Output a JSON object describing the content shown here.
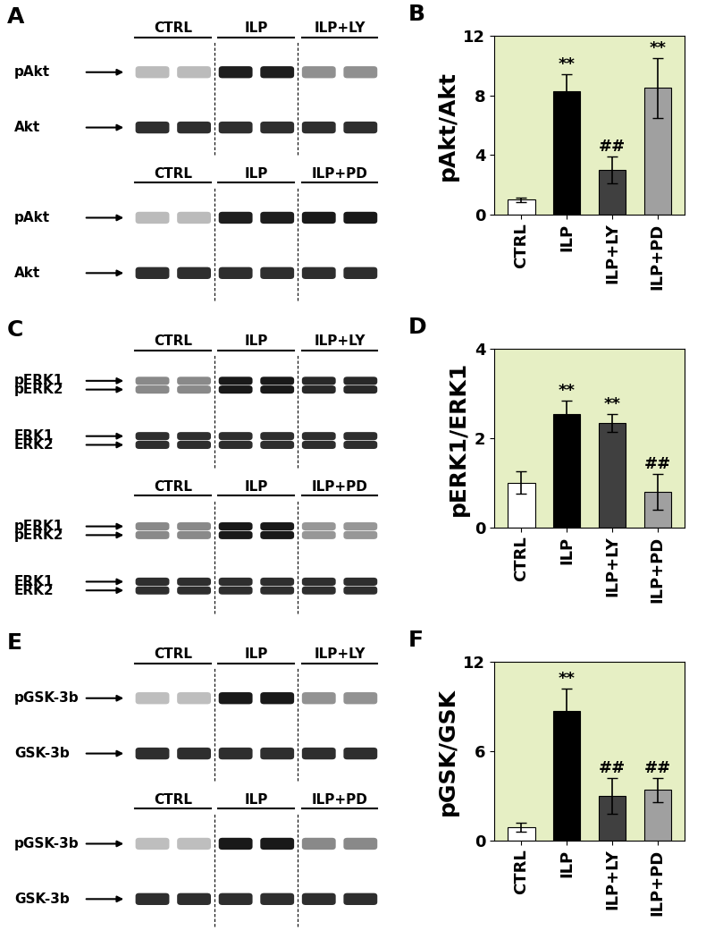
{
  "panel_letters": [
    "A",
    "B",
    "C",
    "D",
    "E",
    "F"
  ],
  "blots": [
    {
      "blocks": [
        {
          "groups": [
            "CTRL",
            "ILP",
            "ILP+LY"
          ],
          "rows": [
            [
              "pAkt"
            ],
            [
              "Akt"
            ]
          ]
        },
        {
          "groups": [
            "CTRL",
            "ILP",
            "ILP+PD"
          ],
          "rows": [
            [
              "pAkt"
            ],
            [
              "Akt"
            ]
          ]
        }
      ]
    },
    {
      "blocks": [
        {
          "groups": [
            "CTRL",
            "ILP",
            "ILP+LY"
          ],
          "rows": [
            [
              "pERK1",
              "pERK2"
            ],
            [
              "ERK1",
              "ERK2"
            ]
          ]
        },
        {
          "groups": [
            "CTRL",
            "ILP",
            "ILP+PD"
          ],
          "rows": [
            [
              "pERK1",
              "pERK2"
            ],
            [
              "ERK1",
              "ERK2"
            ]
          ]
        }
      ]
    },
    {
      "blocks": [
        {
          "groups": [
            "CTRL",
            "ILP",
            "ILP+LY"
          ],
          "rows": [
            [
              "pGSK-3b"
            ],
            [
              "GSK-3b"
            ]
          ]
        },
        {
          "groups": [
            "CTRL",
            "ILP",
            "ILP+PD"
          ],
          "rows": [
            [
              "pGSK-3b"
            ],
            [
              "GSK-3b"
            ]
          ]
        }
      ]
    }
  ],
  "chart_data": [
    {
      "type": "bar",
      "y_label": "pAkt/Akt",
      "categories": [
        "CTRL",
        "ILP",
        "ILP+LY",
        "ILP+PD"
      ],
      "values": [
        1.0,
        8.3,
        3.0,
        8.5
      ],
      "errors": [
        0.15,
        1.1,
        0.9,
        2.0
      ],
      "significance": [
        null,
        "**",
        "##",
        "**"
      ],
      "colors": [
        "#ffffff",
        "#000000",
        "#404040",
        "#a0a0a0"
      ],
      "ylim": [
        0,
        12
      ],
      "yticks": [
        0,
        4,
        8,
        12
      ]
    },
    {
      "type": "bar",
      "y_label": "pERK1/ERK1",
      "categories": [
        "CTRL",
        "ILP",
        "ILP+LY",
        "ILP+PD"
      ],
      "values": [
        1.0,
        2.55,
        2.35,
        0.8
      ],
      "errors": [
        0.25,
        0.3,
        0.2,
        0.4
      ],
      "significance": [
        null,
        "**",
        "**",
        "##"
      ],
      "colors": [
        "#ffffff",
        "#000000",
        "#404040",
        "#a0a0a0"
      ],
      "ylim": [
        0,
        4
      ],
      "yticks": [
        0,
        2,
        4
      ]
    },
    {
      "type": "bar",
      "y_label": "pGSK/GSK",
      "categories": [
        "CTRL",
        "ILP",
        "ILP+LY",
        "ILP+PD"
      ],
      "values": [
        0.9,
        8.7,
        3.0,
        3.4
      ],
      "errors": [
        0.3,
        1.5,
        1.2,
        0.8
      ],
      "significance": [
        null,
        "**",
        "##",
        "##"
      ],
      "colors": [
        "#ffffff",
        "#000000",
        "#404040",
        "#a0a0a0"
      ],
      "ylim": [
        0,
        12
      ],
      "yticks": [
        0,
        6,
        12
      ]
    }
  ]
}
